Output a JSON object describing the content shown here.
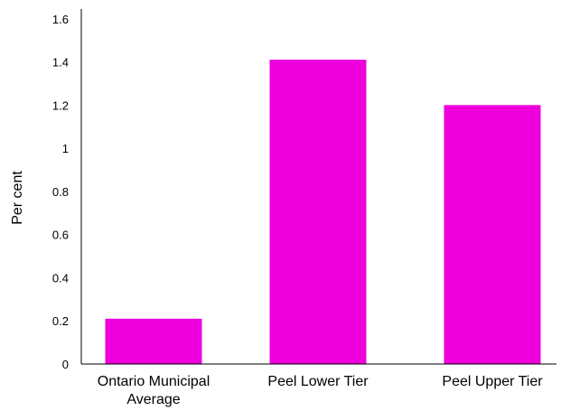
{
  "chart_data": {
    "type": "bar",
    "title": "",
    "xlabel": "",
    "ylabel": "Per cent",
    "categories": [
      [
        "Ontario Municipal",
        "Average"
      ],
      [
        "Peel Lower Tier"
      ],
      [
        "Peel Upper Tier"
      ]
    ],
    "values": [
      0.21,
      1.41,
      1.2
    ],
    "ylim": [
      0,
      1.6
    ],
    "yticks": [
      "0",
      "0.2",
      "0.4",
      "0.6",
      "0.8",
      "1",
      "1.2",
      "1.4",
      "1.6"
    ],
    "grid": false,
    "legend": "none",
    "bar_color": "#ee00dd",
    "axis_color": "#000000"
  }
}
